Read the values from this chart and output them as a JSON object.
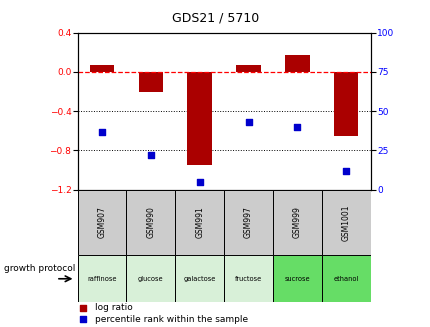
{
  "title": "GDS21 / 5710",
  "samples": [
    "GSM907",
    "GSM990",
    "GSM991",
    "GSM997",
    "GSM999",
    "GSM1001"
  ],
  "log_ratio": [
    0.07,
    -0.2,
    -0.95,
    0.07,
    0.17,
    -0.65
  ],
  "percentile_rank": [
    37,
    22,
    5,
    43,
    40,
    12
  ],
  "protocols": [
    "raffinose",
    "glucose",
    "galactose",
    "fructose",
    "sucrose",
    "ethanol"
  ],
  "protocol_colors": [
    "#d8f0d8",
    "#d8f0d8",
    "#d8f0d8",
    "#d8f0d8",
    "#66dd66",
    "#66dd66"
  ],
  "bar_color": "#aa0000",
  "dot_color": "#0000cc",
  "ylim_left": [
    -1.2,
    0.4
  ],
  "ylim_right": [
    0,
    100
  ],
  "yticks_left": [
    -1.2,
    -0.8,
    -0.4,
    0.0,
    0.4
  ],
  "yticks_right": [
    0,
    25,
    50,
    75,
    100
  ],
  "hline_y": 0.0,
  "dotted_lines": [
    -0.4,
    -0.8
  ],
  "background_color": "#ffffff",
  "bar_width": 0.5,
  "legend_items": [
    "log ratio",
    "percentile rank within the sample"
  ],
  "growth_protocol_label": "growth protocol"
}
